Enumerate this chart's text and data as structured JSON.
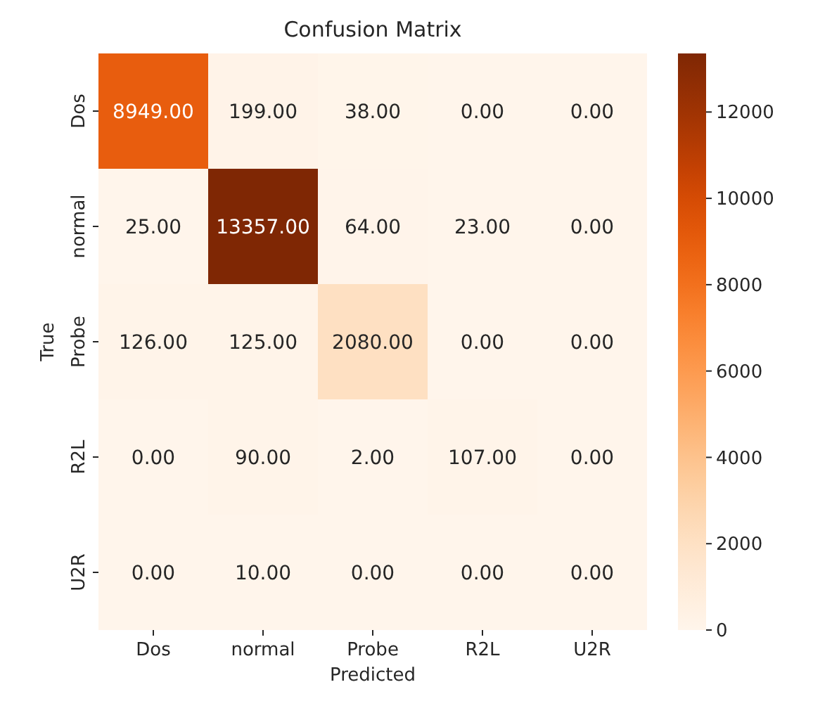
{
  "chart_data": {
    "type": "heatmap",
    "title": "Confusion Matrix",
    "xlabel": "Predicted",
    "ylabel": "True",
    "categories": [
      "Dos",
      "normal",
      "Probe",
      "R2L",
      "U2R"
    ],
    "y_categories": [
      "Dos",
      "normal",
      "Probe",
      "R2L",
      "U2R"
    ],
    "cells": [
      [
        8949,
        199,
        38,
        0,
        0
      ],
      [
        25,
        13357,
        64,
        23,
        0
      ],
      [
        126,
        125,
        2080,
        0,
        0
      ],
      [
        0,
        90,
        2,
        107,
        0
      ],
      [
        0,
        10,
        0,
        0,
        0
      ]
    ],
    "cell_labels": [
      [
        "8949.00",
        "199.00",
        "38.00",
        "0.00",
        "0.00"
      ],
      [
        "25.00",
        "13357.00",
        "64.00",
        "23.00",
        "0.00"
      ],
      [
        "126.00",
        "125.00",
        "2080.00",
        "0.00",
        "0.00"
      ],
      [
        "0.00",
        "90.00",
        "2.00",
        "107.00",
        "0.00"
      ],
      [
        "0.00",
        "10.00",
        "0.00",
        "0.00",
        "0.00"
      ]
    ],
    "clim": [
      0,
      13357
    ],
    "cticks": [
      0,
      2000,
      4000,
      6000,
      8000,
      10000,
      12000
    ]
  }
}
